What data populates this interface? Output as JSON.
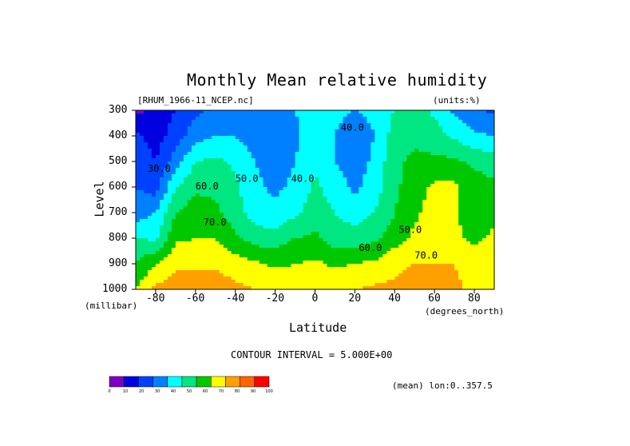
{
  "chart_data": {
    "type": "heatmap",
    "title": "Monthly Mean relative humidity",
    "dataset_label": "[RHUM_1966-11_NCEP.nc]",
    "units_label": "(units:%)",
    "xlabel": "Latitude",
    "ylabel": "Level",
    "x_unit_label": "(degrees_north)",
    "y_unit_label": "(millibar)",
    "xlim": [
      -90,
      90
    ],
    "ylim": [
      1000,
      300
    ],
    "x_ticks": [
      "-80",
      "-60",
      "-40",
      "-20",
      "0",
      "20",
      "40",
      "60",
      "80"
    ],
    "x_tick_values": [
      -80,
      -60,
      -40,
      -20,
      0,
      20,
      40,
      60,
      80
    ],
    "y_ticks": [
      "300",
      "400",
      "500",
      "600",
      "700",
      "800",
      "900",
      "1000"
    ],
    "y_tick_values": [
      300,
      400,
      500,
      600,
      700,
      800,
      900,
      1000
    ],
    "contour_interval_text": "CONTOUR INTERVAL = 5.000E+00",
    "mean_text": "(mean) lon:0..357.5",
    "contour_labels": [
      "40.0",
      "50.0",
      "60.0",
      "70.0",
      "30.0",
      "40.0",
      "50.0",
      "60.0",
      "70.0"
    ],
    "latitudes": [
      -90,
      -80,
      -70,
      -60,
      -50,
      -40,
      -30,
      -20,
      -10,
      0,
      10,
      20,
      30,
      40,
      50,
      60,
      70,
      80,
      90
    ],
    "levels": [
      300,
      400,
      500,
      600,
      700,
      800,
      900,
      1000
    ],
    "values": [
      [
        8,
        12,
        20,
        28,
        32,
        38,
        38,
        36,
        40,
        45,
        42,
        40,
        42,
        50,
        55,
        48,
        38,
        32,
        28
      ],
      [
        22,
        15,
        25,
        35,
        40,
        40,
        35,
        32,
        38,
        45,
        40,
        35,
        40,
        55,
        58,
        55,
        48,
        42,
        40
      ],
      [
        28,
        20,
        35,
        50,
        52,
        48,
        40,
        35,
        40,
        48,
        40,
        35,
        42,
        58,
        62,
        62,
        62,
        58,
        55
      ],
      [
        30,
        25,
        50,
        58,
        58,
        52,
        42,
        38,
        42,
        52,
        45,
        38,
        45,
        58,
        65,
        72,
        72,
        65,
        62
      ],
      [
        35,
        40,
        60,
        65,
        62,
        55,
        45,
        42,
        48,
        55,
        50,
        45,
        50,
        60,
        68,
        75,
        72,
        62,
        68
      ],
      [
        50,
        48,
        68,
        70,
        70,
        62,
        55,
        55,
        60,
        62,
        55,
        55,
        58,
        65,
        72,
        75,
        72,
        68,
        72
      ],
      [
        60,
        70,
        78,
        78,
        78,
        75,
        72,
        68,
        70,
        72,
        68,
        70,
        72,
        78,
        80,
        80,
        80,
        75,
        78
      ],
      [
        70,
        82,
        86,
        88,
        86,
        82,
        80,
        78,
        78,
        80,
        78,
        80,
        82,
        82,
        85,
        85,
        82,
        78,
        80
      ]
    ],
    "colorbar": {
      "ticks": [
        "0",
        "10",
        "20",
        "30",
        "40",
        "50",
        "60",
        "70",
        "80",
        "90",
        "100"
      ],
      "colors": [
        "#7f00bf",
        "#0000e1",
        "#0040ff",
        "#0080ff",
        "#00ffff",
        "#00e680",
        "#00c800",
        "#ffff00",
        "#ffa000",
        "#ff6400",
        "#ff0000"
      ]
    }
  }
}
